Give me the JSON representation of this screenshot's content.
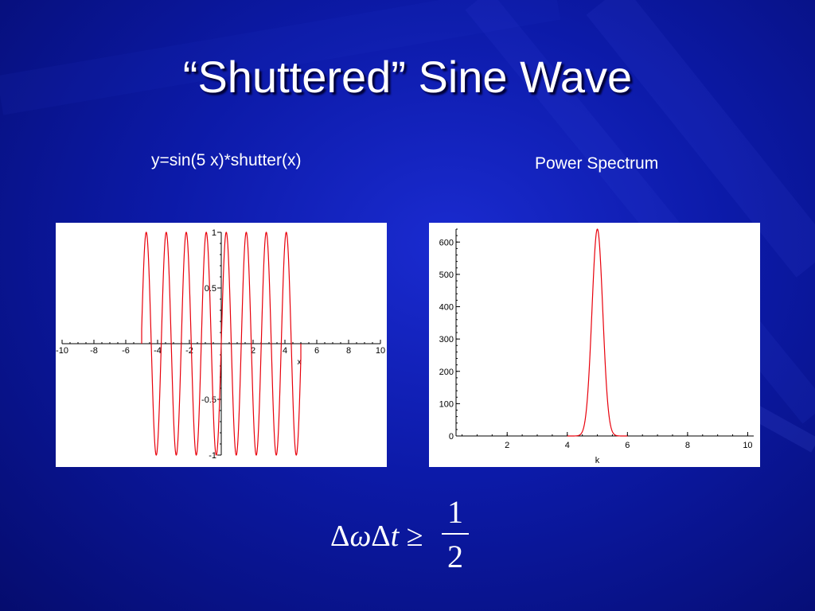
{
  "slide": {
    "title": "“Shuttered” Sine Wave",
    "left_caption": "y=sin(5 x)*shutter(x)",
    "right_caption": "Power Spectrum"
  },
  "formula": {
    "lhs_delta1": "Δ",
    "lhs_omega": "ω",
    "lhs_delta2": "Δ",
    "lhs_t": "t",
    "relation": "≥",
    "numerator": "1",
    "denominator": "2"
  },
  "colors": {
    "curve": "#e8000b",
    "axis": "#000000",
    "plot_bg": "#ffffff",
    "text": "#ffffff"
  },
  "chart_data": [
    {
      "type": "line",
      "function": "y = sin(5x) for |x| <= 5, else 0",
      "x_range": [
        -10,
        10
      ],
      "y_range": [
        -1,
        1
      ],
      "x_ticks": [
        -10,
        -8,
        -6,
        -4,
        -2,
        2,
        4,
        6,
        8,
        10
      ],
      "x_tick_labels": [
        "-10",
        "-8",
        "-6",
        "-4",
        "-2",
        "2",
        "4",
        "6",
        "8",
        "10"
      ],
      "y_ticks": [
        1,
        0.5,
        -0.5,
        -1
      ],
      "y_tick_labels": [
        "1",
        "0.5",
        "-0.5",
        "-1"
      ],
      "xlabel": "x",
      "ylabel": "",
      "shutter": [
        -5,
        5
      ],
      "frequency": 5,
      "grid": false
    },
    {
      "type": "line",
      "function": "gaussian peak",
      "peak_center": 5,
      "peak_value": 640,
      "peak_sigma": 0.18,
      "x_range": [
        0.3,
        10.2
      ],
      "y_range": [
        0,
        640
      ],
      "x_ticks": [
        2,
        4,
        6,
        8,
        10
      ],
      "x_tick_labels": [
        "2",
        "4",
        "6",
        "8",
        "10"
      ],
      "y_ticks": [
        0,
        100,
        200,
        300,
        400,
        500,
        600
      ],
      "y_tick_labels": [
        "0",
        "100",
        "200",
        "300",
        "400",
        "500",
        "600"
      ],
      "xlabel": "k",
      "ylabel": "",
      "grid": false
    }
  ]
}
